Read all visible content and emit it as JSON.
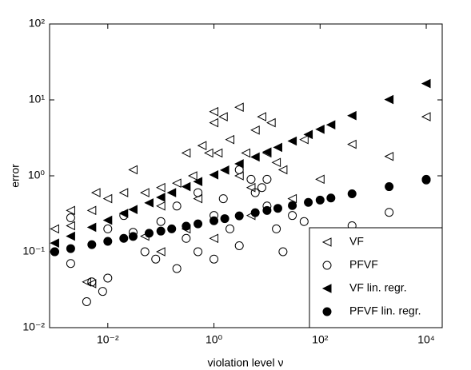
{
  "chart_data": {
    "type": "scatter",
    "x_label": "violation level ν",
    "y_label": "error",
    "x_scale": "log",
    "y_scale": "log",
    "xlim": [
      0.0008,
      20000
    ],
    "ylim": [
      0.01,
      100
    ],
    "xticks": [
      {
        "value": 0.01,
        "label": "10⁻²"
      },
      {
        "value": 1,
        "label": "10⁰"
      },
      {
        "value": 100,
        "label": "10²"
      },
      {
        "value": 10000,
        "label": "10⁴"
      }
    ],
    "yticks": [
      {
        "value": 0.01,
        "label": "10⁻²"
      },
      {
        "value": 0.1,
        "label": "10⁻¹"
      },
      {
        "value": 1,
        "label": "10⁰"
      },
      {
        "value": 10,
        "label": "10¹"
      },
      {
        "value": 100,
        "label": "10²"
      }
    ],
    "legend": "lower right",
    "series": [
      {
        "name": "VF",
        "marker": "triangle-left",
        "filled": false,
        "color": "#000000",
        "x": [
          0.001,
          0.002,
          0.002,
          0.004,
          0.005,
          0.006,
          0.005,
          0.01,
          0.02,
          0.03,
          0.05,
          0.1,
          0.1,
          0.2,
          0.3,
          0.4,
          0.5,
          0.6,
          0.8,
          1,
          1,
          1.2,
          1.5,
          2,
          3,
          3,
          4,
          5,
          6,
          8,
          10,
          12,
          15,
          20,
          30,
          50,
          100,
          400,
          2000,
          10000,
          0.3,
          1,
          0.05,
          0.1,
          5
        ],
        "values": [
          0.2,
          0.35,
          0.22,
          0.04,
          0.038,
          0.6,
          0.35,
          0.5,
          0.6,
          1.2,
          0.6,
          0.7,
          0.4,
          0.8,
          2,
          1,
          0.5,
          2.5,
          2,
          7,
          5,
          2,
          6,
          3,
          8,
          1,
          2,
          0.7,
          4,
          6,
          2,
          5,
          1.5,
          1.2,
          0.5,
          3,
          0.9,
          2.6,
          1.8,
          6,
          0.2,
          0.15,
          0.16,
          0.1,
          0.3
        ]
      },
      {
        "name": "PFVF",
        "marker": "circle",
        "filled": false,
        "color": "#000000",
        "x": [
          0.001,
          0.002,
          0.002,
          0.004,
          0.005,
          0.008,
          0.01,
          0.01,
          0.02,
          0.03,
          0.05,
          0.08,
          0.1,
          0.2,
          0.3,
          0.5,
          0.5,
          1,
          1,
          1.5,
          2,
          3,
          5,
          6,
          10,
          10,
          15,
          20,
          30,
          50,
          100,
          150,
          400,
          2000,
          10000,
          0.2,
          3,
          8
        ],
        "values": [
          0.1,
          0.28,
          0.07,
          0.022,
          0.04,
          0.03,
          0.045,
          0.2,
          0.3,
          0.18,
          0.1,
          0.08,
          0.25,
          0.4,
          0.15,
          0.6,
          0.1,
          0.3,
          0.08,
          0.5,
          0.2,
          0.12,
          0.9,
          0.6,
          0.4,
          0.9,
          0.2,
          0.1,
          0.3,
          0.25,
          0.12,
          0.14,
          0.22,
          0.33,
          0.88,
          0.06,
          1.2,
          0.7
        ]
      },
      {
        "name": "VF lin. regr.",
        "marker": "triangle-left",
        "filled": true,
        "color": "#000000",
        "x": [
          0.001,
          0.002,
          0.005,
          0.01,
          0.02,
          0.03,
          0.06,
          0.1,
          0.16,
          0.3,
          0.5,
          1,
          1.6,
          3,
          6,
          10,
          16,
          30,
          60,
          100,
          160,
          400,
          2000,
          10000
        ],
        "values": [
          0.13,
          0.16,
          0.21,
          0.26,
          0.32,
          0.36,
          0.44,
          0.52,
          0.6,
          0.72,
          0.84,
          1.03,
          1.19,
          1.44,
          1.77,
          2.06,
          2.37,
          2.87,
          3.5,
          4.1,
          4.7,
          6.2,
          10.1,
          16.4
        ]
      },
      {
        "name": "PFVF lin. regr.",
        "marker": "circle",
        "filled": true,
        "color": "#000000",
        "x": [
          0.001,
          0.002,
          0.005,
          0.01,
          0.02,
          0.03,
          0.06,
          0.1,
          0.16,
          0.3,
          0.5,
          1,
          1.6,
          3,
          6,
          10,
          16,
          30,
          60,
          100,
          160,
          400,
          2000,
          10000
        ],
        "values": [
          0.1,
          0.11,
          0.124,
          0.137,
          0.15,
          0.159,
          0.175,
          0.187,
          0.2,
          0.217,
          0.233,
          0.256,
          0.273,
          0.297,
          0.327,
          0.35,
          0.373,
          0.406,
          0.447,
          0.479,
          0.51,
          0.58,
          0.72,
          0.9
        ]
      }
    ]
  }
}
